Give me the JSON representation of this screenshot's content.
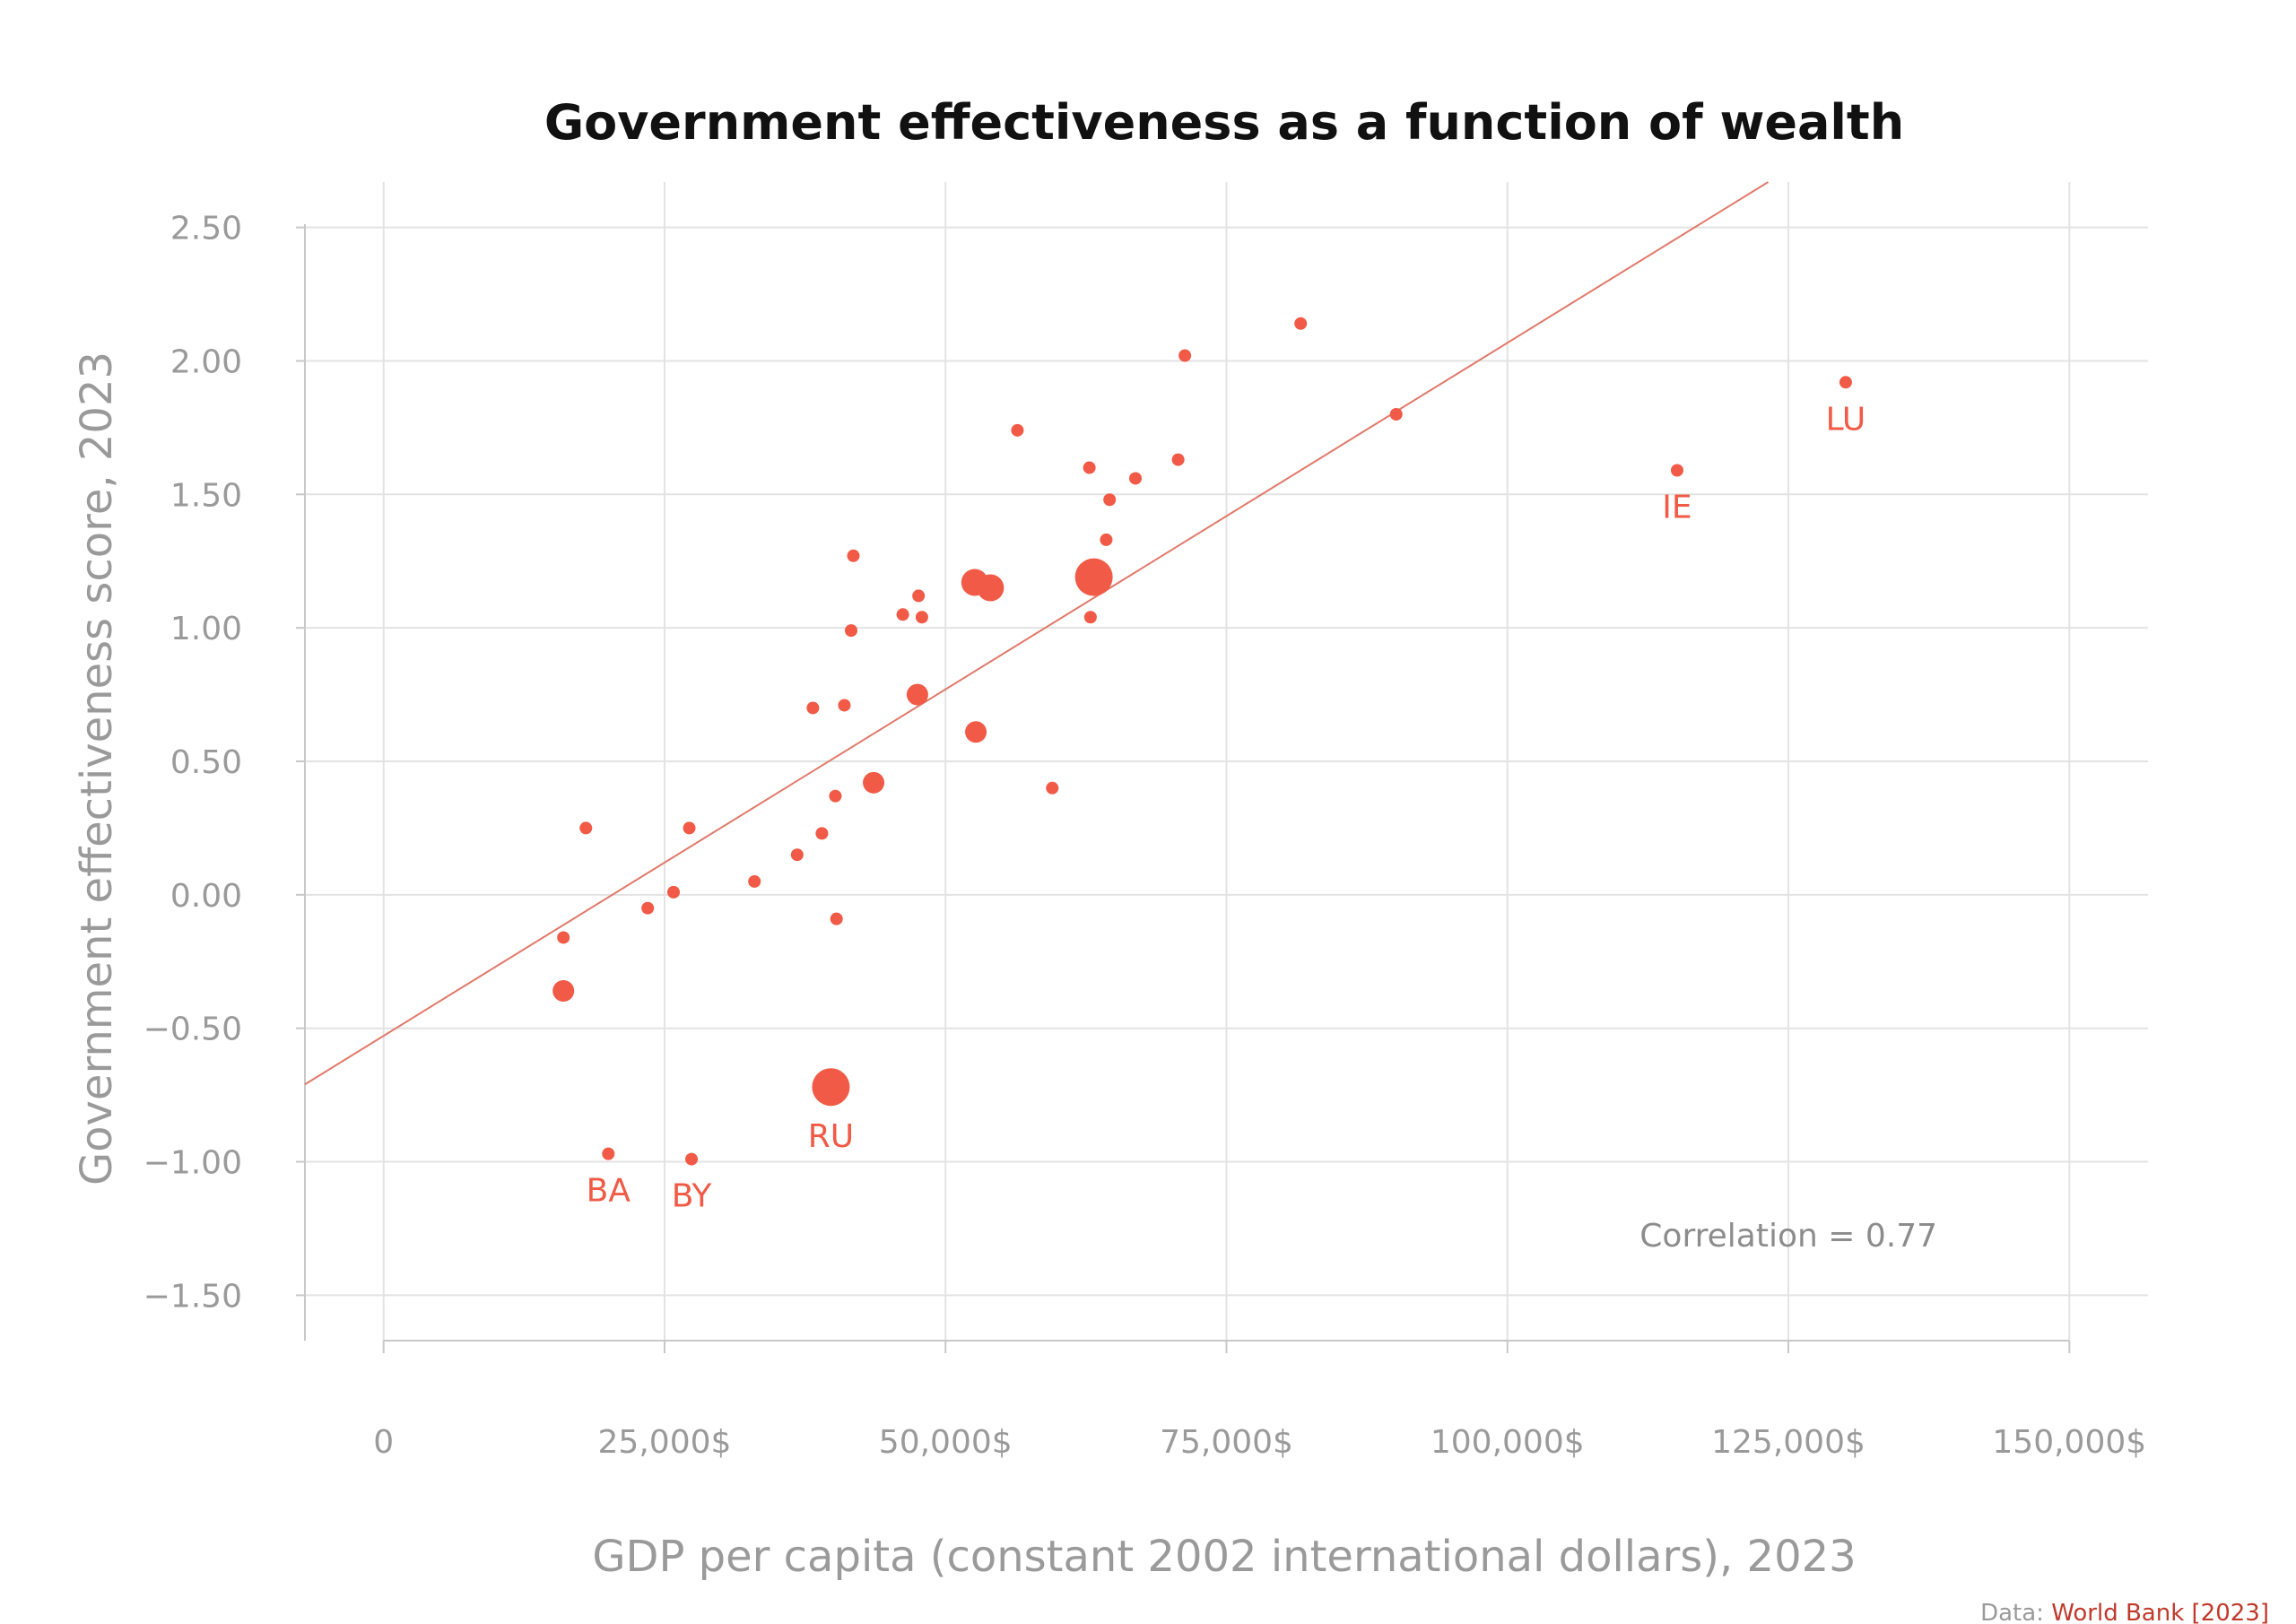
{
  "chart_data": {
    "type": "scatter",
    "title": "Government effectiveness as a function of wealth",
    "xlabel": "GDP per capita (constant 2002 international dollars), 2023",
    "ylabel": "Government effectiveness score, 2023",
    "xlim": [
      -7000,
      157000
    ],
    "ylim": [
      -1.67,
      2.67
    ],
    "x_ticks": [
      0,
      25000,
      50000,
      75000,
      100000,
      125000,
      150000
    ],
    "x_tick_labels": [
      "0",
      "25,000$",
      "50,000$",
      "75,000$",
      "100,000$",
      "125,000$",
      "150,000$"
    ],
    "y_ticks": [
      2.5,
      2.0,
      1.5,
      1.0,
      0.5,
      0.0,
      -0.5,
      -1.0,
      -1.5
    ],
    "y_tick_labels": [
      "2.50",
      "2.00",
      "1.50",
      "1.00",
      "0.50",
      "0.00",
      "−0.50",
      "−1.00",
      "−1.50"
    ],
    "grid": true,
    "color": "#f05a46",
    "trendline": {
      "color": "#e07a6a",
      "points": [
        [
          -7000,
          -0.71
        ],
        [
          123200,
          2.67
        ]
      ]
    },
    "annotation": "Correlation = 0.77",
    "points": [
      {
        "x": 16000,
        "y": -0.16,
        "size": "small"
      },
      {
        "x": 16000,
        "y": -0.36,
        "size": "medium"
      },
      {
        "x": 18000,
        "y": 0.25,
        "size": "small"
      },
      {
        "x": 20000,
        "y": -0.97,
        "size": "small",
        "label": "BA"
      },
      {
        "x": 23500,
        "y": -0.05,
        "size": "small"
      },
      {
        "x": 25800,
        "y": 0.01,
        "size": "small"
      },
      {
        "x": 27200,
        "y": 0.25,
        "size": "small"
      },
      {
        "x": 27400,
        "y": -0.99,
        "size": "small",
        "label": "BY"
      },
      {
        "x": 33000,
        "y": 0.05,
        "size": "small"
      },
      {
        "x": 36800,
        "y": 0.15,
        "size": "small"
      },
      {
        "x": 38200,
        "y": 0.7,
        "size": "small"
      },
      {
        "x": 39000,
        "y": 0.23,
        "size": "small"
      },
      {
        "x": 39800,
        "y": -0.72,
        "size": "xlarge",
        "label": "RU"
      },
      {
        "x": 40200,
        "y": 0.37,
        "size": "small"
      },
      {
        "x": 40300,
        "y": -0.09,
        "size": "small"
      },
      {
        "x": 41000,
        "y": 0.71,
        "size": "small"
      },
      {
        "x": 41600,
        "y": 0.99,
        "size": "small"
      },
      {
        "x": 41800,
        "y": 1.27,
        "size": "small"
      },
      {
        "x": 43600,
        "y": 0.42,
        "size": "medium"
      },
      {
        "x": 46200,
        "y": 1.05,
        "size": "small"
      },
      {
        "x": 47500,
        "y": 0.75,
        "size": "medium"
      },
      {
        "x": 47600,
        "y": 1.12,
        "size": "small"
      },
      {
        "x": 47900,
        "y": 1.04,
        "size": "small"
      },
      {
        "x": 52600,
        "y": 1.17,
        "size": "large"
      },
      {
        "x": 52700,
        "y": 0.61,
        "size": "medium"
      },
      {
        "x": 54000,
        "y": 1.15,
        "size": "large"
      },
      {
        "x": 56400,
        "y": 1.74,
        "size": "small"
      },
      {
        "x": 59500,
        "y": 0.4,
        "size": "small"
      },
      {
        "x": 62800,
        "y": 1.6,
        "size": "small"
      },
      {
        "x": 62900,
        "y": 1.04,
        "size": "small"
      },
      {
        "x": 63200,
        "y": 1.19,
        "size": "xlarge"
      },
      {
        "x": 64300,
        "y": 1.33,
        "size": "small"
      },
      {
        "x": 64600,
        "y": 1.48,
        "size": "small"
      },
      {
        "x": 66900,
        "y": 1.56,
        "size": "small"
      },
      {
        "x": 70700,
        "y": 1.63,
        "size": "small"
      },
      {
        "x": 71300,
        "y": 2.02,
        "size": "small"
      },
      {
        "x": 81600,
        "y": 2.14,
        "size": "small"
      },
      {
        "x": 90100,
        "y": 1.8,
        "size": "small"
      },
      {
        "x": 115100,
        "y": 1.59,
        "size": "small",
        "label": "IE"
      },
      {
        "x": 130100,
        "y": 1.92,
        "size": "small",
        "label": "LU"
      }
    ]
  },
  "source": {
    "prefix": "Data: ",
    "name": "World Bank [2023]"
  }
}
